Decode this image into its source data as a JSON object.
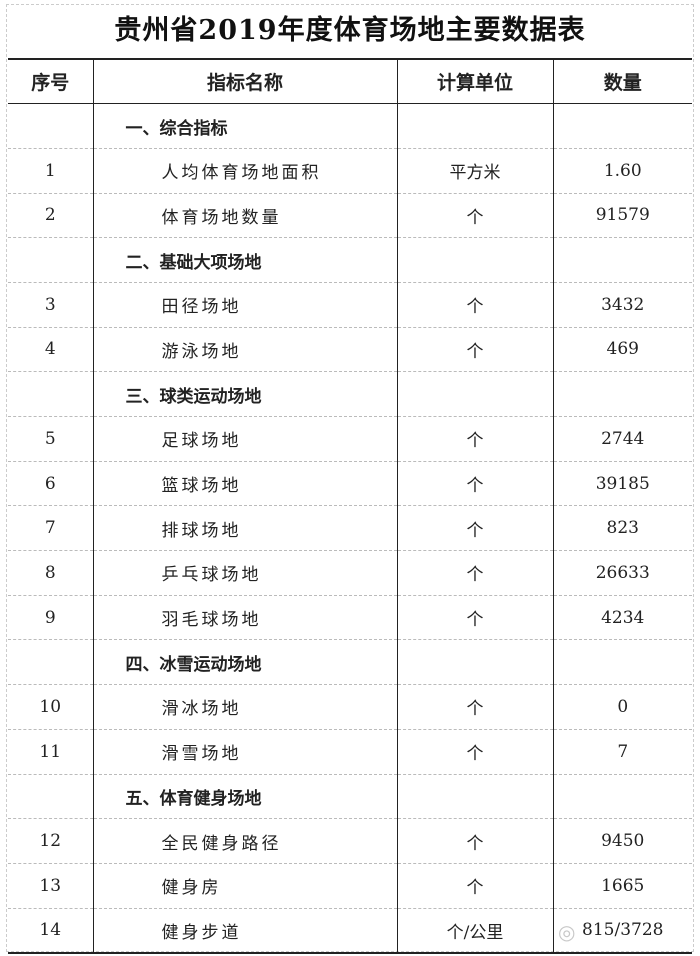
{
  "title": "贵州省2019年度体育场地主要数据表",
  "headers": [
    "序号",
    "指标名称",
    "计算单位",
    "数量"
  ],
  "rows": [
    {
      "no": "",
      "name": "一、综合指标",
      "unit": "",
      "value": "",
      "section": true
    },
    {
      "no": "1",
      "name": "人均体育场地面积",
      "unit": "平方米",
      "value": "1.60"
    },
    {
      "no": "2",
      "name": "体育场地数量",
      "unit": "个",
      "value": "91579"
    },
    {
      "no": "",
      "name": "二、基础大项场地",
      "unit": "",
      "value": "",
      "section": true
    },
    {
      "no": "3",
      "name": "田径场地",
      "unit": "个",
      "value": "3432"
    },
    {
      "no": "4",
      "name": "游泳场地",
      "unit": "个",
      "value": "469"
    },
    {
      "no": "",
      "name": "三、球类运动场地",
      "unit": "",
      "value": "",
      "section": true
    },
    {
      "no": "5",
      "name": "足球场地",
      "unit": "个",
      "value": "2744"
    },
    {
      "no": "6",
      "name": "篮球场地",
      "unit": "个",
      "value": "39185"
    },
    {
      "no": "7",
      "name": "排球场地",
      "unit": "个",
      "value": "823"
    },
    {
      "no": "8",
      "name": "乒乓球场地",
      "unit": "个",
      "value": "26633"
    },
    {
      "no": "9",
      "name": "羽毛球场地",
      "unit": "个",
      "value": "4234"
    },
    {
      "no": "",
      "name": "四、冰雪运动场地",
      "unit": "",
      "value": "",
      "section": true
    },
    {
      "no": "10",
      "name": "滑冰场地",
      "unit": "个",
      "value": "0"
    },
    {
      "no": "11",
      "name": "滑雪场地",
      "unit": "个",
      "value": "7"
    },
    {
      "no": "",
      "name": "五、体育健身场地",
      "unit": "",
      "value": "",
      "section": true
    },
    {
      "no": "12",
      "name": "全民健身路径",
      "unit": "个",
      "value": "9450"
    },
    {
      "no": "13",
      "name": "健身房",
      "unit": "个",
      "value": "1665"
    },
    {
      "no": "14",
      "name": "健身步道",
      "unit": "个/公里",
      "value": "815/3728"
    }
  ],
  "watermark_icon": "weibo-icon"
}
